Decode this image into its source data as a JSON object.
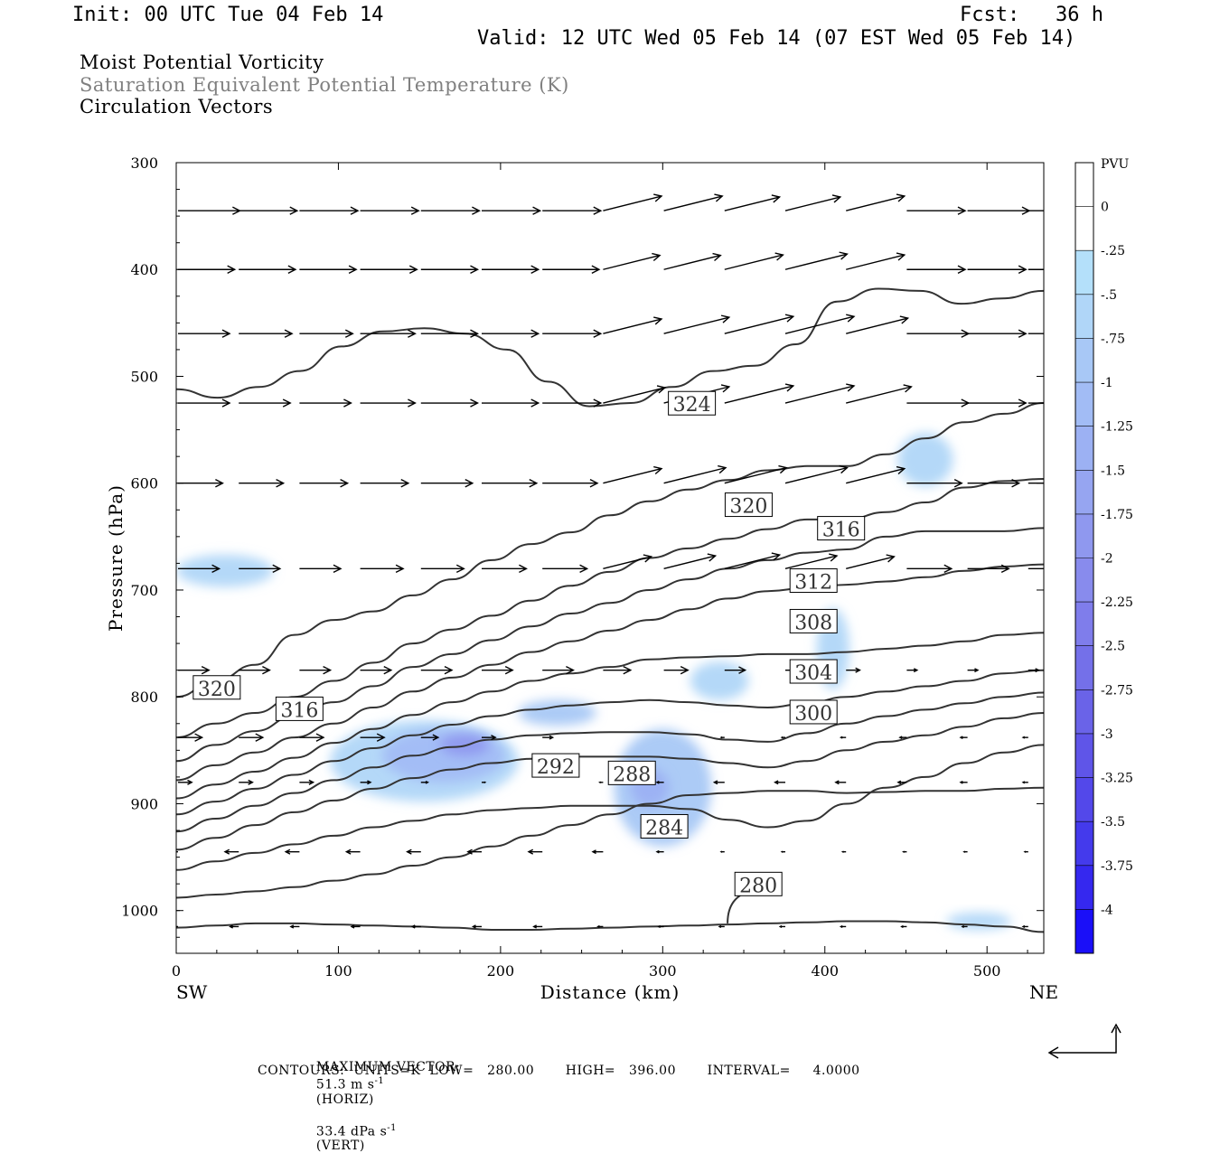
{
  "header": {
    "init": "Init: 00 UTC Tue 04 Feb 14",
    "fcst": "Fcst:   36 h",
    "valid": "Valid: 12 UTC Wed 05 Feb 14 (07 EST Wed 05 Feb 14)",
    "fields": [
      {
        "text": "Moist Potential Vorticity",
        "color": "#000000"
      },
      {
        "text": "Saturation Equivalent Potential Temperature (K)",
        "color": "#808080"
      },
      {
        "text": "Circulation Vectors",
        "color": "#000000"
      }
    ]
  },
  "chart_data": {
    "type": "heatmap",
    "description_of_overlays": "filled MPV shading with theta-es contours and circulation vectors",
    "xlabel": "Distance (km)",
    "ylabel": "Pressure (hPa)",
    "xlim": [
      0,
      535
    ],
    "ylim": [
      1040,
      300
    ],
    "x_ticks": [
      0,
      100,
      200,
      300,
      400,
      500
    ],
    "y_ticks": [
      300,
      400,
      500,
      600,
      700,
      800,
      900,
      1000
    ],
    "x_end_labels": {
      "left": "SW",
      "right": "NE"
    },
    "colorbar": {
      "units": "PVU",
      "levels": [
        "0",
        "-.25",
        "-.5",
        "-.75",
        "-1",
        "-1.25",
        "-1.5",
        "-1.75",
        "-2",
        "-2.25",
        "-2.5",
        "-2.75",
        "-3",
        "-3.25",
        "-3.5",
        "-3.75",
        "-4"
      ],
      "colors": [
        "#ffffff",
        "#ffffff",
        "#b4e0fa",
        "#b0d6f8",
        "#a8c8f6",
        "#a2bcf5",
        "#9cb1f3",
        "#96a5f1",
        "#8f98ef",
        "#888bed",
        "#7f7deb",
        "#7470e9",
        "#6a63e8",
        "#5f55e8",
        "#5348ea",
        "#443aec",
        "#3528ef",
        "#1a0ff8"
      ]
    },
    "contours": {
      "units": "K",
      "low": 280.0,
      "high": 396.0,
      "interval": 4.0,
      "labels": [
        {
          "value": "324",
          "x": 318,
          "p": 526
        },
        {
          "value": "320",
          "x": 353,
          "p": 621
        },
        {
          "value": "316",
          "x": 410,
          "p": 643
        },
        {
          "value": "312",
          "x": 393,
          "p": 692
        },
        {
          "value": "308",
          "x": 393,
          "p": 730
        },
        {
          "value": "304",
          "x": 393,
          "p": 777
        },
        {
          "value": "300",
          "x": 393,
          "p": 815
        },
        {
          "value": "320",
          "x": 25,
          "p": 792
        },
        {
          "value": "316",
          "x": 76,
          "p": 812
        },
        {
          "value": "292",
          "x": 234,
          "p": 865
        },
        {
          "value": "288",
          "x": 281,
          "p": 872
        },
        {
          "value": "284",
          "x": 301,
          "p": 922
        },
        {
          "value": "280",
          "x": 359,
          "p": 976
        }
      ],
      "lines": [
        {
          "p": [
            512,
            520,
            510,
            495,
            472,
            458,
            455,
            460,
            475,
            505,
            528,
            525,
            510,
            495,
            490,
            470,
            430,
            418,
            420,
            432,
            427,
            420
          ]
        },
        {
          "p": [
            800,
            785,
            770,
            742,
            728,
            720,
            705,
            690,
            672,
            657,
            646,
            630,
            617,
            606,
            597,
            588,
            584,
            584,
            573,
            558,
            543,
            535,
            525
          ]
        },
        {
          "p": [
            838,
            825,
            815,
            800,
            785,
            768,
            750,
            737,
            724,
            710,
            696,
            683,
            670,
            661,
            652,
            643,
            634,
            634,
            627,
            618,
            604,
            598,
            596
          ]
        },
        {
          "p": [
            860,
            845,
            832,
            818,
            805,
            790,
            772,
            760,
            747,
            734,
            722,
            712,
            700,
            690,
            680,
            672,
            665,
            662,
            650,
            645,
            645,
            645,
            642
          ]
        },
        {
          "p": [
            878,
            864,
            852,
            838,
            825,
            810,
            795,
            782,
            770,
            758,
            748,
            738,
            728,
            718,
            708,
            701,
            698,
            695,
            692,
            688,
            682,
            678,
            676
          ]
        },
        {
          "p": [
            895,
            882,
            870,
            857,
            843,
            830,
            817,
            805,
            795,
            785,
            778,
            772,
            765,
            763,
            762,
            760,
            760,
            758,
            755,
            752,
            748,
            742,
            740
          ]
        },
        {
          "p": [
            910,
            898,
            886,
            873,
            860,
            848,
            836,
            826,
            818,
            812,
            808,
            805,
            803,
            805,
            808,
            810,
            806,
            800,
            795,
            790,
            785,
            778,
            775
          ]
        },
        {
          "p": [
            926,
            914,
            902,
            890,
            878,
            866,
            855,
            847,
            840,
            836,
            834,
            833,
            833,
            835,
            840,
            842,
            834,
            825,
            818,
            812,
            806,
            800,
            796
          ]
        },
        {
          "p": [
            943,
            932,
            920,
            908,
            897,
            886,
            876,
            868,
            862,
            858,
            856,
            856,
            856,
            858,
            862,
            866,
            860,
            850,
            842,
            836,
            828,
            820,
            815
          ]
        },
        {
          "p": [
            962,
            954,
            946,
            938,
            930,
            922,
            916,
            910,
            906,
            904,
            902,
            902,
            902,
            905,
            915,
            922,
            916,
            900,
            885,
            875,
            862,
            852,
            845
          ]
        },
        {
          "p": [
            988,
            985,
            982,
            978,
            972,
            966,
            958,
            950,
            940,
            930,
            920,
            910,
            900,
            892,
            890,
            888,
            888,
            890,
            889,
            888,
            888,
            886,
            885
          ]
        },
        {
          "p": [
            1016,
            1014,
            1012,
            1012,
            1013,
            1014,
            1015,
            1016,
            1018,
            1018,
            1017,
            1016,
            1015,
            1014,
            1013,
            1012,
            1011,
            1010,
            1010,
            1011,
            1013,
            1015,
            1020
          ]
        }
      ]
    },
    "vectors": {
      "max_vector_label": "MAXIMUM VECTOR:",
      "max_horiz": "51.3 m s",
      "horiz_tag": "(HORIZ)",
      "max_vert": "33.4 dPa s",
      "vert_tag": "(VERT)",
      "exponent": "-1",
      "rows": [
        {
          "p": 345,
          "u": [
            36,
            34,
            34,
            34,
            34,
            34,
            34,
            34,
            34,
            32,
            32,
            34,
            34,
            36,
            36
          ]
        },
        {
          "p": 400,
          "u": [
            33,
            33,
            33,
            33,
            33,
            33,
            33,
            33,
            33,
            34,
            36,
            34,
            34,
            34,
            36
          ]
        },
        {
          "p": 460,
          "u": [
            30,
            31,
            31,
            32,
            33,
            33,
            34,
            34,
            38,
            40,
            40,
            36,
            36,
            34,
            32
          ]
        },
        {
          "p": 525,
          "u": [
            30,
            30,
            30,
            32,
            33,
            33,
            34,
            36,
            38,
            40,
            40,
            38,
            36,
            34,
            34
          ]
        },
        {
          "p": 600,
          "u": [
            26,
            26,
            28,
            28,
            30,
            32,
            32,
            34,
            36,
            36,
            36,
            34,
            32,
            30,
            28
          ]
        },
        {
          "p": 680,
          "u": [
            24,
            24,
            24,
            25,
            25,
            26,
            26,
            28,
            30,
            32,
            30,
            28,
            26,
            24,
            22
          ]
        },
        {
          "p": 775,
          "u": [
            18,
            18,
            18,
            18,
            18,
            18,
            18,
            16,
            14,
            12,
            10,
            8,
            6,
            6,
            6
          ]
        },
        {
          "p": 838,
          "u": [
            14,
            14,
            14,
            14,
            10,
            8,
            6,
            0,
            0,
            -2,
            -2,
            -3,
            -4,
            -4,
            -3
          ]
        },
        {
          "p": 880,
          "u": [
            8,
            8,
            8,
            6,
            4,
            2,
            0,
            -2,
            -4,
            -6,
            -6,
            -6,
            -5,
            -4,
            -3
          ]
        },
        {
          "p": 945,
          "u": [
            -8,
            -8,
            -8,
            -8,
            -8,
            -8,
            -8,
            -6,
            -4,
            -2,
            -2,
            -2,
            -2,
            -2,
            -2
          ]
        },
        {
          "p": 1015,
          "u": [
            -5,
            -5,
            -5,
            -5,
            -5,
            -5,
            -5,
            -3,
            -3,
            -3,
            -3,
            -3,
            -3,
            -3,
            -3
          ]
        }
      ]
    },
    "mpv_areas": [
      {
        "level": 2,
        "x": 30,
        "p": 682,
        "rx": 30,
        "rp": 15
      },
      {
        "level": 2,
        "x": 462,
        "p": 578,
        "rx": 17,
        "rp": 25
      },
      {
        "level": 2,
        "x": 335,
        "p": 785,
        "rx": 18,
        "rp": 18
      },
      {
        "level": 2,
        "x": 405,
        "p": 755,
        "rx": 10,
        "rp": 38
      },
      {
        "level": 2,
        "x": 495,
        "p": 1010,
        "rx": 20,
        "rp": 8
      },
      {
        "level": 2,
        "x": 153,
        "p": 860,
        "rx": 58,
        "rp": 38
      },
      {
        "level": 4,
        "x": 165,
        "p": 855,
        "rx": 38,
        "rp": 25
      },
      {
        "level": 7,
        "x": 178,
        "p": 845,
        "rx": 15,
        "rp": 10
      },
      {
        "level": 3,
        "x": 235,
        "p": 815,
        "rx": 24,
        "rp": 12
      },
      {
        "level": 3,
        "x": 300,
        "p": 885,
        "rx": 30,
        "rp": 55
      },
      {
        "level": 5,
        "x": 292,
        "p": 885,
        "rx": 12,
        "rp": 18
      }
    ]
  },
  "footer": {
    "contours_line": "CONTOURS:  UNITS=K  LOW=   280.00       HIGH=   396.00       INTERVAL=     4.0000"
  }
}
